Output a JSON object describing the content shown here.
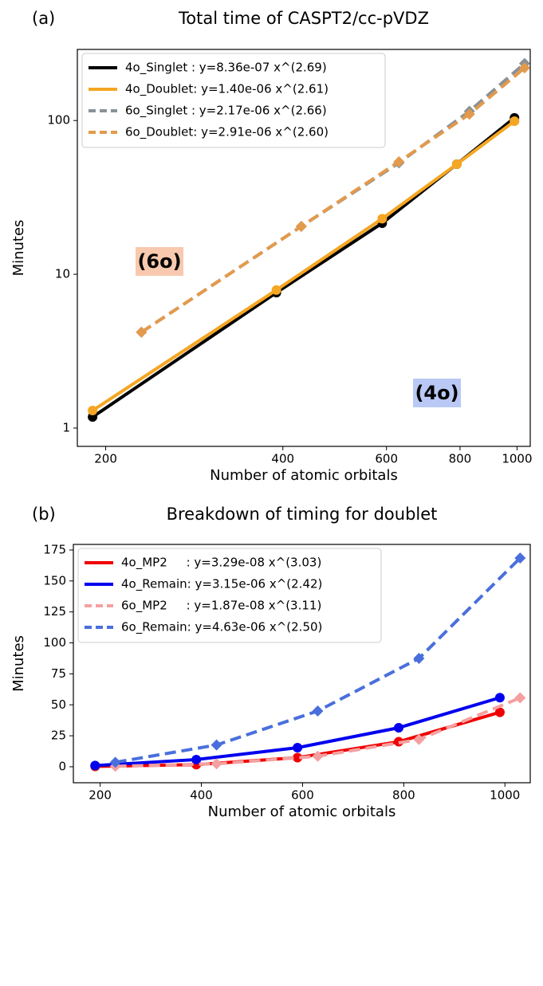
{
  "chart_data": [
    {
      "type": "line",
      "panel": "(a)",
      "title": "Total time of CASPT2/cc-pVDZ",
      "xlabel": "Number of atomic orbitals",
      "ylabel": "Minutes",
      "xscale": "log",
      "yscale": "log",
      "xlim": [
        179,
        1053
      ],
      "ylim": [
        0.76,
        290
      ],
      "xticks": [
        200,
        400,
        600,
        800,
        1000
      ],
      "yticks": [
        1,
        10,
        100
      ],
      "legend": "upper left",
      "series": [
        {
          "name": "4o_Singlet : y=8.36e-07 x^(2.69)",
          "color": "#000000",
          "dash": "solid",
          "marker": "circle",
          "x": [
            190,
            390,
            590,
            790,
            990
          ],
          "values": [
            1.18,
            7.6,
            21.5,
            52,
            104
          ]
        },
        {
          "name": "4o_Doublet: y=1.40e-06 x^(2.61)",
          "color": "#f5a623",
          "dash": "solid",
          "marker": "circle",
          "x": [
            190,
            390,
            590,
            790,
            990
          ],
          "values": [
            1.3,
            7.9,
            23,
            52,
            99
          ]
        },
        {
          "name": "6o_Singlet : y=2.17e-06 x^(2.66)",
          "color": "#8a9196",
          "dash": "dashed",
          "marker": "diamond",
          "x": [
            230,
            430,
            630,
            830,
            1030
          ],
          "values": [
            4.2,
            20.5,
            53,
            115,
            235
          ]
        },
        {
          "name": "6o_Doublet: y=2.91e-06 x^(2.60)",
          "color": "#e39a4c",
          "dash": "dashed",
          "marker": "diamond",
          "x": [
            230,
            430,
            630,
            830,
            1030
          ],
          "values": [
            4.2,
            20.5,
            54,
            110,
            220
          ]
        }
      ],
      "annotations": [
        {
          "text": "(6o)",
          "color": "#f8c9ae"
        },
        {
          "text": "(4o)",
          "color": "#b9c8f5"
        }
      ]
    },
    {
      "type": "line",
      "panel": "(b)",
      "title": "Breakdown of timing for doublet",
      "xlabel": "Number of atomic orbitals",
      "ylabel": "Minutes",
      "xscale": "linear",
      "yscale": "linear",
      "xlim": [
        147,
        1050
      ],
      "ylim": [
        -12.9,
        179.5
      ],
      "xticks": [
        200,
        400,
        600,
        800,
        1000
      ],
      "yticks": [
        0,
        25,
        50,
        75,
        100,
        125,
        150,
        175
      ],
      "legend": "upper left",
      "series": [
        {
          "name": "4o_MP2     : y=3.29e-08 x^(3.03)",
          "color": "#f00000",
          "dash": "solid",
          "marker": "circle",
          "x": [
            190,
            390,
            590,
            790,
            990
          ],
          "values": [
            0.3,
            1.7,
            7.4,
            20.2,
            44
          ]
        },
        {
          "name": "4o_Remain: y=3.15e-06 x^(2.42)",
          "color": "#0000ee",
          "dash": "solid",
          "marker": "circle",
          "x": [
            190,
            390,
            590,
            790,
            990
          ],
          "values": [
            1.0,
            5.8,
            15.4,
            31.5,
            55.8
          ]
        },
        {
          "name": "6o_MP2     : y=1.87e-08 x^(3.11)",
          "color": "#f5a0a0",
          "dash": "dashed",
          "marker": "diamond",
          "x": [
            230,
            430,
            630,
            830,
            1030
          ],
          "values": [
            0.4,
            2.4,
            8.5,
            22,
            55.6
          ]
        },
        {
          "name": "6o_Remain: y=4.63e-06 x^(2.50)",
          "color": "#4a6fdc",
          "dash": "dashed",
          "marker": "diamond",
          "x": [
            230,
            430,
            630,
            830,
            1030
          ],
          "values": [
            3.6,
            17.6,
            45,
            87.5,
            168.5
          ]
        }
      ]
    }
  ]
}
